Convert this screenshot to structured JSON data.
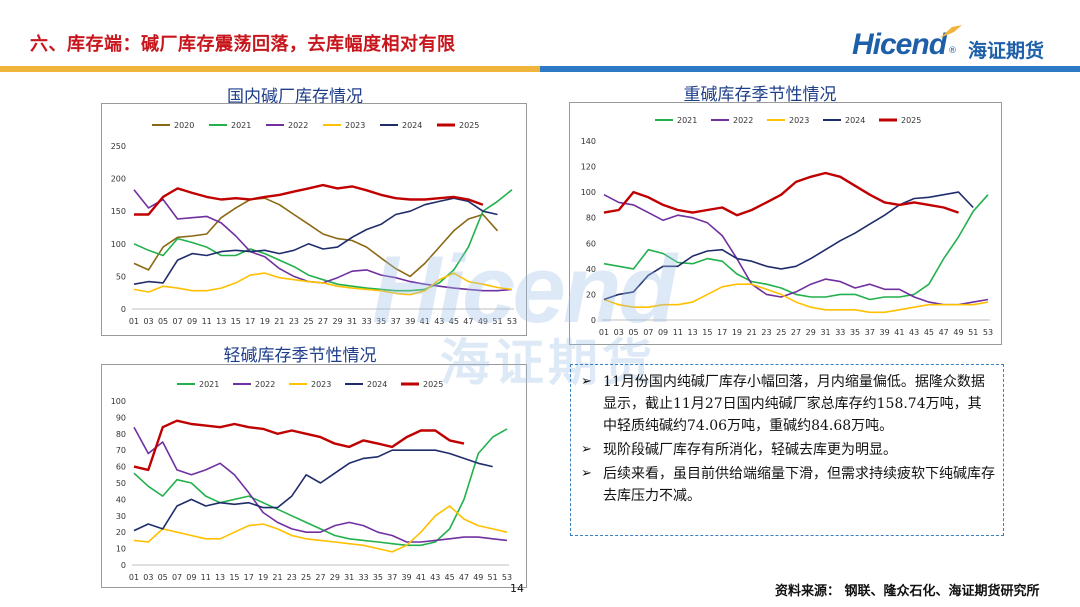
{
  "header": {
    "title": "六、库存端：碱厂库存震荡回落，去库幅度相对有限",
    "logo_en": "Hicend",
    "logo_cn": "海证期货",
    "logo_mark": "®",
    "bar_colors": [
      "#f0b33c",
      "#2d79c4"
    ]
  },
  "watermark": {
    "en": "Hicend",
    "cn": "海证期货"
  },
  "chart_titles": [
    "国内碱厂库存情况",
    "重碱库存季节性情况",
    "轻碱库存季节性情况"
  ],
  "chart_data": [
    {
      "type": "line",
      "title": "国内碱厂库存情况",
      "categories": [
        "01",
        "03",
        "05",
        "07",
        "09",
        "11",
        "13",
        "15",
        "17",
        "19",
        "21",
        "23",
        "25",
        "27",
        "29",
        "31",
        "33",
        "35",
        "37",
        "39",
        "41",
        "43",
        "45",
        "47",
        "49",
        "51",
        "53"
      ],
      "ylim": [
        0,
        250
      ],
      "yticks": [
        0,
        50,
        100,
        150,
        200,
        250
      ],
      "legend": "top",
      "series": [
        {
          "name": "2020",
          "color": "#8b6914",
          "values": [
            70,
            60,
            95,
            110,
            112,
            115,
            140,
            155,
            168,
            170,
            160,
            145,
            130,
            115,
            108,
            105,
            95,
            78,
            62,
            50,
            70,
            95,
            120,
            138,
            145,
            120,
            null
          ]
        },
        {
          "name": "2021",
          "color": "#22b14c",
          "values": [
            100,
            90,
            82,
            108,
            102,
            95,
            82,
            82,
            92,
            85,
            75,
            65,
            52,
            45,
            38,
            35,
            32,
            30,
            28,
            28,
            30,
            40,
            60,
            95,
            150,
            165,
            183
          ]
        },
        {
          "name": "2022",
          "color": "#7030a0",
          "values": [
            183,
            155,
            168,
            138,
            140,
            142,
            132,
            112,
            88,
            80,
            62,
            50,
            42,
            40,
            48,
            58,
            60,
            52,
            48,
            42,
            38,
            35,
            32,
            30,
            28,
            28,
            30
          ]
        },
        {
          "name": "2023",
          "color": "#ffc000",
          "values": [
            30,
            26,
            35,
            32,
            28,
            28,
            32,
            40,
            52,
            55,
            48,
            45,
            42,
            40,
            35,
            32,
            30,
            28,
            24,
            22,
            28,
            45,
            55,
            42,
            38,
            33,
            30
          ]
        },
        {
          "name": "2024",
          "color": "#1f2d6b",
          "values": [
            38,
            42,
            40,
            75,
            85,
            82,
            88,
            90,
            88,
            90,
            85,
            90,
            100,
            92,
            95,
            110,
            122,
            130,
            145,
            150,
            160,
            165,
            170,
            165,
            150,
            145,
            null
          ]
        },
        {
          "name": "2025",
          "color": "#c00000",
          "values": [
            145,
            145,
            172,
            185,
            178,
            172,
            168,
            170,
            168,
            172,
            175,
            180,
            185,
            190,
            185,
            188,
            182,
            175,
            170,
            168,
            168,
            170,
            172,
            168,
            160,
            null,
            null
          ]
        }
      ]
    },
    {
      "type": "line",
      "title": "重碱库存季节性情况",
      "categories": [
        "01",
        "03",
        "05",
        "07",
        "09",
        "11",
        "13",
        "15",
        "17",
        "19",
        "21",
        "23",
        "25",
        "27",
        "29",
        "31",
        "33",
        "35",
        "37",
        "39",
        "41",
        "43",
        "45",
        "47",
        "49",
        "51",
        "53"
      ],
      "ylim": [
        0,
        140
      ],
      "yticks": [
        0,
        20,
        40,
        60,
        80,
        100,
        120,
        140
      ],
      "legend": "top",
      "series": [
        {
          "name": "2021",
          "color": "#22b14c",
          "values": [
            44,
            42,
            40,
            55,
            52,
            45,
            44,
            48,
            46,
            36,
            30,
            28,
            25,
            20,
            18,
            18,
            20,
            20,
            16,
            18,
            18,
            20,
            28,
            48,
            65,
            85,
            98
          ]
        },
        {
          "name": "2022",
          "color": "#7030a0",
          "values": [
            98,
            92,
            90,
            84,
            78,
            82,
            80,
            76,
            66,
            48,
            28,
            20,
            18,
            22,
            28,
            32,
            30,
            25,
            28,
            24,
            24,
            18,
            14,
            12,
            12,
            14,
            16
          ]
        },
        {
          "name": "2023",
          "color": "#ffc000",
          "values": [
            16,
            12,
            10,
            10,
            12,
            12,
            14,
            20,
            26,
            28,
            28,
            24,
            20,
            14,
            10,
            8,
            8,
            8,
            6,
            6,
            8,
            10,
            12,
            12,
            12,
            12,
            14
          ]
        },
        {
          "name": "2024",
          "color": "#1f2d6b",
          "values": [
            16,
            20,
            22,
            35,
            42,
            42,
            50,
            54,
            55,
            48,
            46,
            42,
            40,
            42,
            48,
            55,
            62,
            68,
            75,
            82,
            90,
            95,
            96,
            98,
            100,
            88,
            null
          ]
        },
        {
          "name": "2025",
          "color": "#c00000",
          "values": [
            84,
            86,
            100,
            96,
            90,
            86,
            84,
            86,
            88,
            82,
            86,
            92,
            98,
            108,
            112,
            115,
            112,
            105,
            98,
            92,
            90,
            92,
            90,
            88,
            84,
            null,
            null
          ]
        }
      ]
    },
    {
      "type": "line",
      "title": "轻碱库存季节性情况",
      "categories": [
        "01",
        "03",
        "05",
        "07",
        "09",
        "11",
        "13",
        "15",
        "17",
        "19",
        "21",
        "23",
        "25",
        "27",
        "29",
        "31",
        "33",
        "35",
        "37",
        "39",
        "41",
        "43",
        "45",
        "47",
        "49",
        "51",
        "53"
      ],
      "ylim": [
        0,
        100
      ],
      "yticks": [
        0,
        10,
        20,
        30,
        40,
        50,
        60,
        70,
        80,
        90,
        100
      ],
      "legend": "top",
      "series": [
        {
          "name": "2021",
          "color": "#22b14c",
          "values": [
            56,
            48,
            42,
            52,
            50,
            42,
            38,
            40,
            42,
            38,
            34,
            30,
            26,
            22,
            18,
            16,
            15,
            14,
            13,
            12,
            12,
            14,
            22,
            40,
            68,
            78,
            83
          ]
        },
        {
          "name": "2022",
          "color": "#7030a0",
          "values": [
            84,
            68,
            75,
            58,
            55,
            58,
            62,
            55,
            44,
            32,
            26,
            22,
            20,
            20,
            24,
            26,
            24,
            20,
            18,
            14,
            14,
            15,
            16,
            17,
            17,
            16,
            15
          ]
        },
        {
          "name": "2023",
          "color": "#ffc000",
          "values": [
            15,
            14,
            22,
            20,
            18,
            16,
            16,
            20,
            24,
            25,
            22,
            18,
            16,
            15,
            14,
            13,
            12,
            10,
            8,
            12,
            20,
            30,
            36,
            28,
            24,
            22,
            20
          ]
        },
        {
          "name": "2024",
          "color": "#1f2d6b",
          "values": [
            21,
            25,
            22,
            36,
            40,
            36,
            38,
            37,
            38,
            35,
            35,
            42,
            55,
            50,
            56,
            62,
            65,
            66,
            70,
            70,
            70,
            70,
            68,
            65,
            62,
            60,
            null
          ]
        },
        {
          "name": "2025",
          "color": "#c00000",
          "values": [
            60,
            58,
            84,
            88,
            86,
            85,
            84,
            86,
            84,
            83,
            80,
            82,
            80,
            78,
            74,
            72,
            76,
            74,
            72,
            78,
            82,
            82,
            76,
            74,
            null,
            null,
            null
          ]
        }
      ]
    }
  ],
  "notes": [
    "11月份国内纯碱厂库存小幅回落，月内缩量偏低。据隆众数据显示，截止11月27日国内纯碱厂家总库存约158.74万吨，其中轻质纯碱约74.06万吨，重碱约84.68万吨。",
    "现阶段碱厂库存有所消化，轻碱去库更为明显。",
    "后续来看，虽目前供给端缩量下滑，但需求持续疲软下纯碱库存去库压力不减。"
  ],
  "source": "资料来源：  钢联、隆众石化、海证期货研究所",
  "page_number": "14"
}
